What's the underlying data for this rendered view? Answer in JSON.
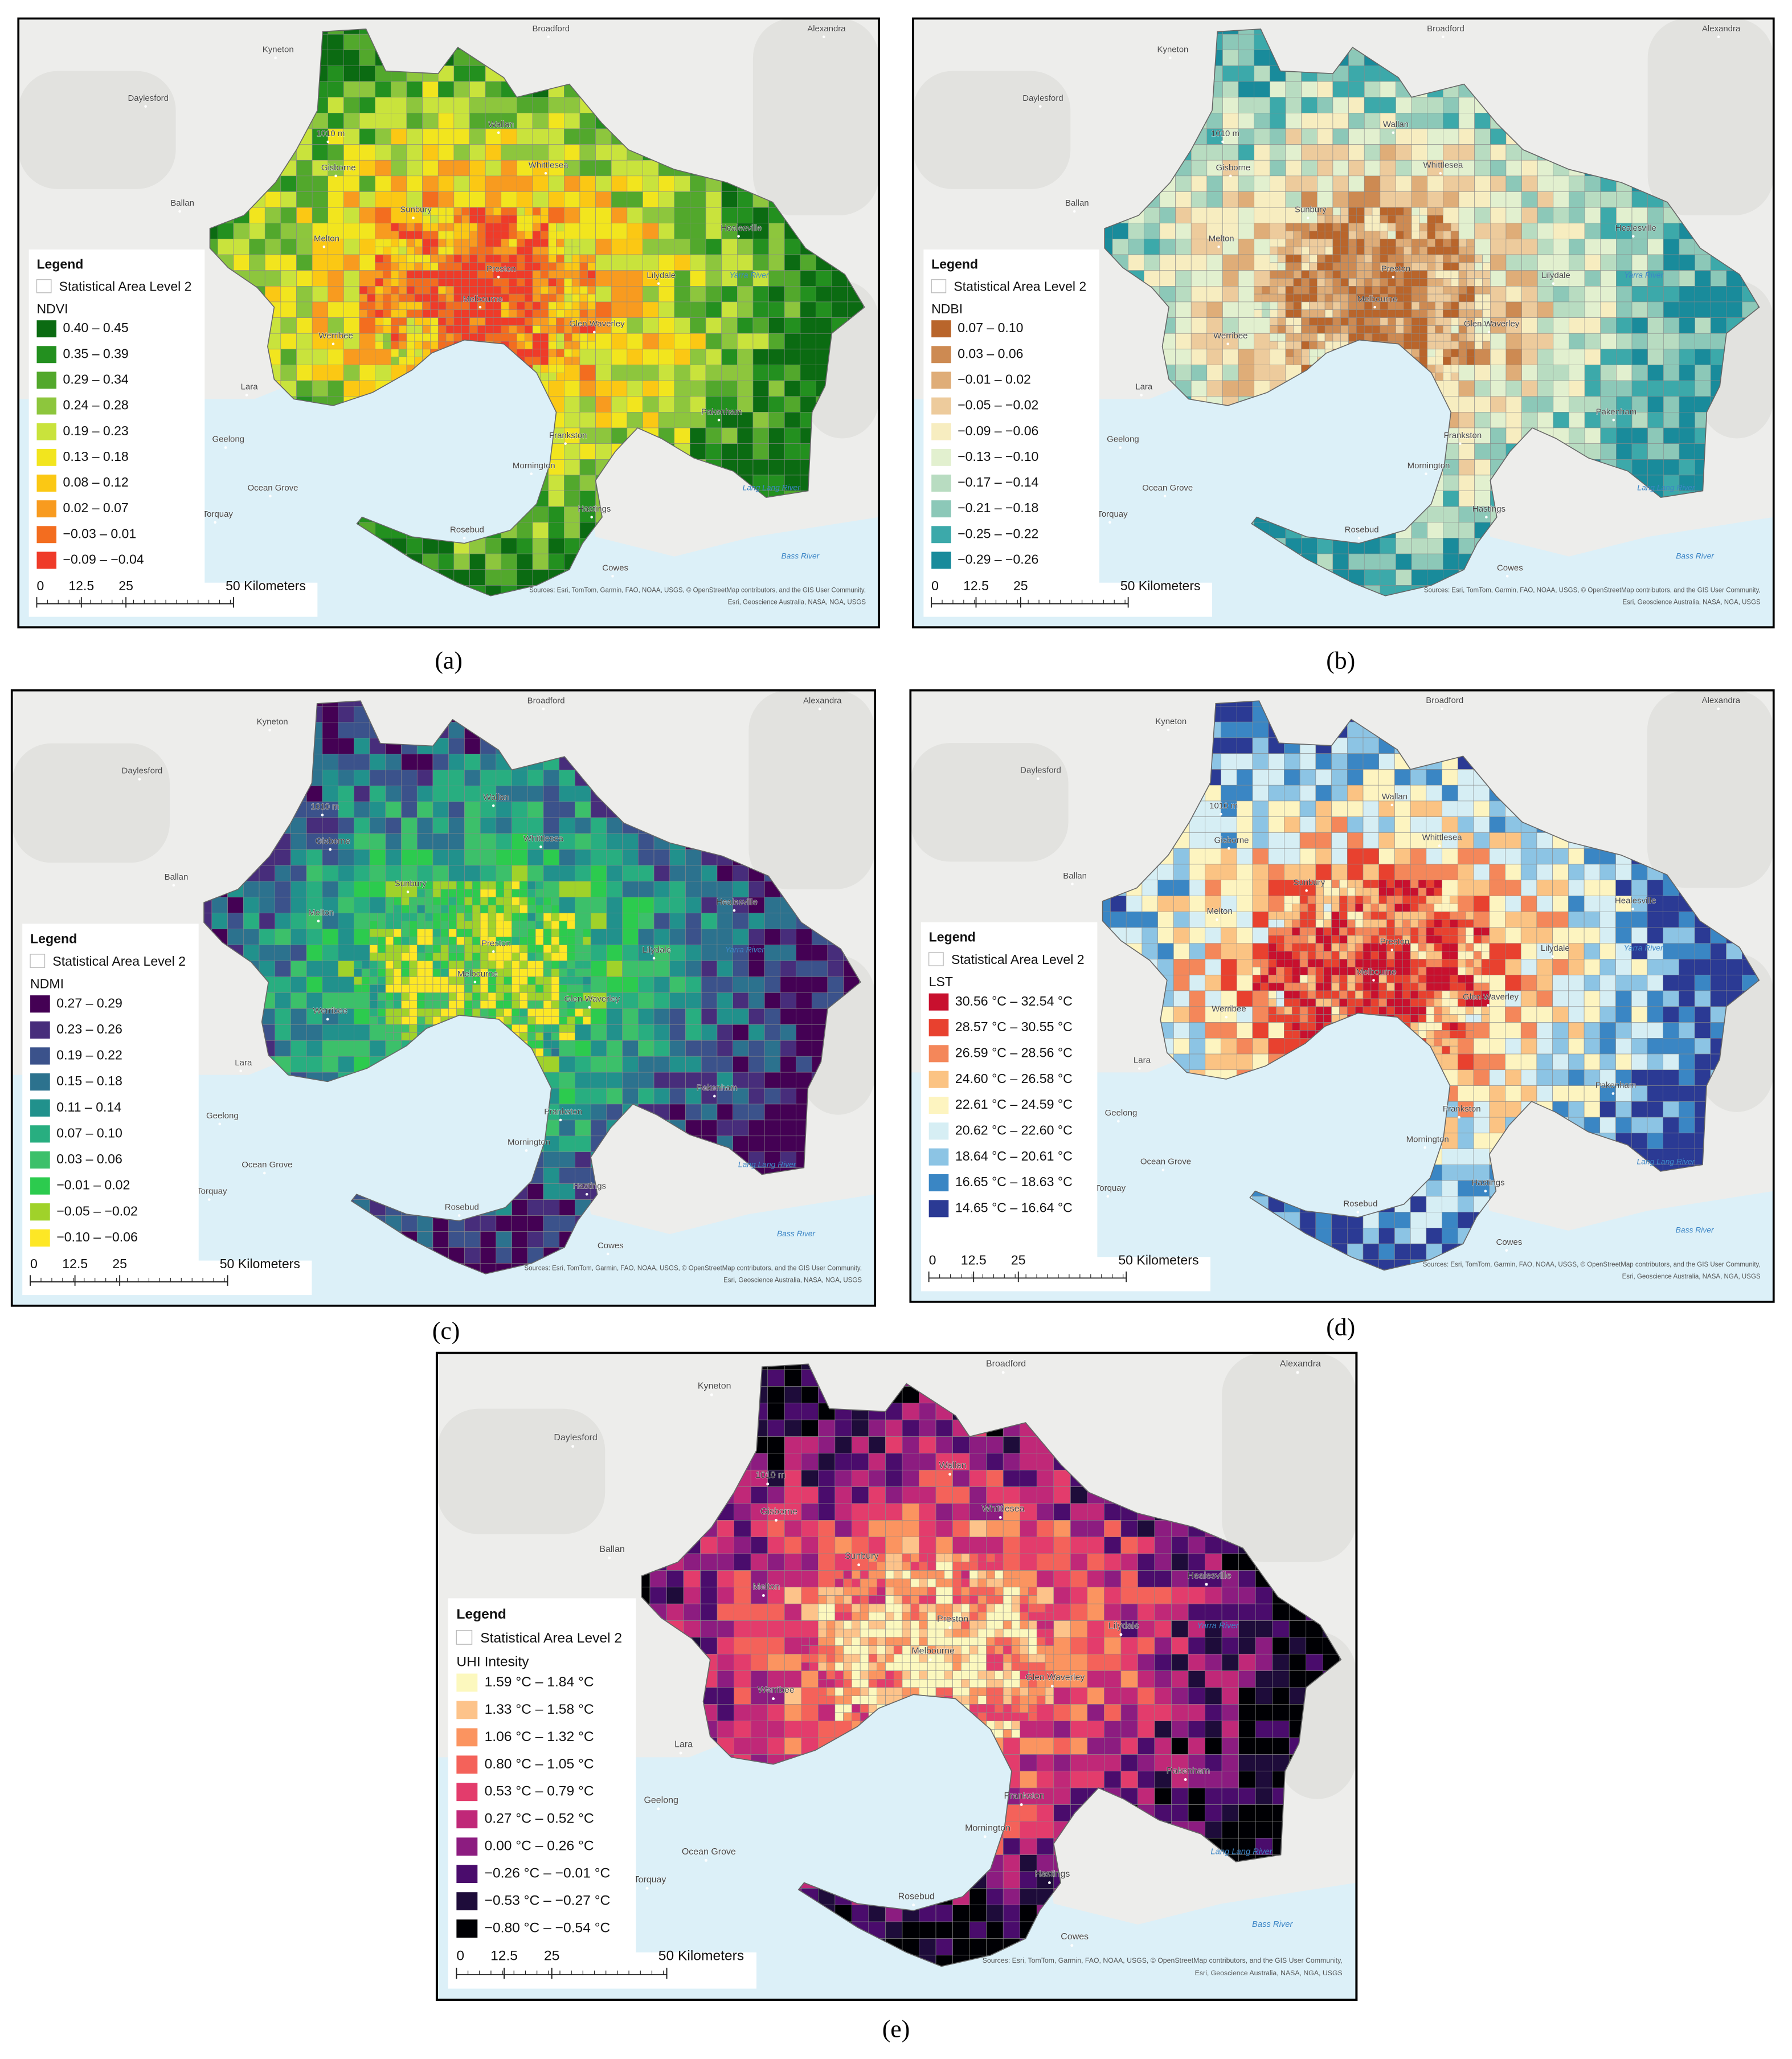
{
  "panels": [
    {
      "label": "(a)",
      "legend_title": "Legend",
      "layer": "Statistical Area Level 2",
      "field": "NDVI",
      "classes": [
        {
          "label": "0.40 – 0.45",
          "color": "#0b6b12"
        },
        {
          "label": "0.35 – 0.39",
          "color": "#23901f"
        },
        {
          "label": "0.29 – 0.34",
          "color": "#52a82c"
        },
        {
          "label": "0.24 – 0.28",
          "color": "#8dc63d"
        },
        {
          "label": "0.19 – 0.23",
          "color": "#c9e33c"
        },
        {
          "label": "0.13 – 0.18",
          "color": "#f2e51e"
        },
        {
          "label": "0.08 – 0.12",
          "color": "#fbc814"
        },
        {
          "label": "0.02 – 0.07",
          "color": "#f89b1f"
        },
        {
          "label": "−0.03 – 0.01",
          "color": "#f36d1f"
        },
        {
          "label": "−0.09 – −0.04",
          "color": "#ef3b29"
        }
      ]
    },
    {
      "label": "(b)",
      "legend_title": "Legend",
      "layer": "Statistical Area Level 2",
      "field": "NDBI",
      "classes": [
        {
          "label": "0.07 – 0.10",
          "color": "#b9652b"
        },
        {
          "label": "0.03 – 0.06",
          "color": "#cd8a52"
        },
        {
          "label": "−0.01 – 0.02",
          "color": "#dfad78"
        },
        {
          "label": "−0.05 – −0.02",
          "color": "#edcb9c"
        },
        {
          "label": "−0.09 – −0.06",
          "color": "#f7edc0"
        },
        {
          "label": "−0.13 – −0.10",
          "color": "#e2f0cf"
        },
        {
          "label": "−0.17 – −0.14",
          "color": "#b8dcc1"
        },
        {
          "label": "−0.21 – −0.18",
          "color": "#8cc8b8"
        },
        {
          "label": "−0.25 – −0.22",
          "color": "#3ca9aa"
        },
        {
          "label": "−0.29 – −0.26",
          "color": "#198b9b"
        }
      ]
    },
    {
      "label": "(c)",
      "legend_title": "Legend",
      "layer": "Statistical Area Level 2",
      "field": "NDMI",
      "classes": [
        {
          "label": "0.27 – 0.29",
          "color": "#440154"
        },
        {
          "label": "0.23 – 0.26",
          "color": "#472d7b"
        },
        {
          "label": "0.19 – 0.22",
          "color": "#3b528b"
        },
        {
          "label": "0.15 – 0.18",
          "color": "#2c728e"
        },
        {
          "label": "0.11 – 0.14",
          "color": "#21918c"
        },
        {
          "label": "0.07 – 0.10",
          "color": "#28ae80"
        },
        {
          "label": "0.03 – 0.06",
          "color": "#3cc06a"
        },
        {
          "label": "−0.01 – 0.02",
          "color": "#2ccb4e"
        },
        {
          "label": "−0.05 – −0.02",
          "color": "#a0d22a"
        },
        {
          "label": "−0.10 – −0.06",
          "color": "#fde725"
        }
      ]
    },
    {
      "label": "(d)",
      "legend_title": "Legend",
      "layer": "Statistical Area Level 2",
      "field": "LST",
      "classes": [
        {
          "label": "30.56 °C – 32.54 °C",
          "color": "#c8102e"
        },
        {
          "label": "28.57 °C – 30.55 °C",
          "color": "#e8412f"
        },
        {
          "label": "26.59 °C – 28.56 °C",
          "color": "#f4875a"
        },
        {
          "label": "24.60 °C – 26.58 °C",
          "color": "#fbc383"
        },
        {
          "label": "22.61 °C – 24.59 °C",
          "color": "#fdf4c0"
        },
        {
          "label": "20.62 °C – 22.60 °C",
          "color": "#d6eef4"
        },
        {
          "label": "18.64 °C – 20.61 °C",
          "color": "#8cc4e4"
        },
        {
          "label": "16.65 °C – 18.63 °C",
          "color": "#3a86c4"
        },
        {
          "label": "14.65 °C – 16.64 °C",
          "color": "#2b3a94"
        }
      ]
    },
    {
      "label": "(e)",
      "legend_title": "Legend",
      "layer": "Statistical Area Level 2",
      "field": "UHI Intesity",
      "classes": [
        {
          "label": "1.59 °C – 1.84 °C",
          "color": "#fcf8be"
        },
        {
          "label": "1.33 °C – 1.58 °C",
          "color": "#fdc38a"
        },
        {
          "label": "1.06 °C – 1.32 °C",
          "color": "#fb9460"
        },
        {
          "label": "0.80 °C – 1.05 °C",
          "color": "#f4625a"
        },
        {
          "label": "0.53 °C – 0.79 °C",
          "color": "#e33c6c"
        },
        {
          "label": "0.27 °C – 0.52 °C",
          "color": "#c02878"
        },
        {
          "label": "0.00 °C – 0.26 °C",
          "color": "#8c1c80"
        },
        {
          "label": "−0.26 °C – −0.01 °C",
          "color": "#4a0c6c"
        },
        {
          "label": "−0.53 °C – −0.27 °C",
          "color": "#1e0c3a"
        },
        {
          "label": "−0.80 °C – −0.54 °C",
          "color": "#000004"
        }
      ]
    }
  ],
  "scale_bar": [
    "0",
    "12.5",
    "25",
    "50 Kilometers"
  ],
  "place_names": [
    "Kyneton",
    "Broadford",
    "Alexandra",
    "Daylesford",
    "Ballan",
    "Wallan",
    "Whittlesea",
    "Gisborne",
    "Sunbury",
    "Melton",
    "Healesville",
    "Lilydale",
    "Preston",
    "Melbourne",
    "Glen Waverley",
    "Werribee",
    "Lara",
    "Geelong",
    "Frankston",
    "Pakenham",
    "Mornington",
    "Hastings",
    "Ocean Grove",
    "Torquay",
    "Rosebud",
    "Cowes",
    "1010 m"
  ],
  "water_names": [
    "Yarra River",
    "Lang Lang River",
    "Bass River"
  ],
  "attribution": [
    "Sources: Esri, TomTom, Garmin, FAO, NOAA, USGS, © OpenStreetMap contributors, and the GIS User Community,",
    "Esri, Geoscience Australia, NASA, NGA, USGS"
  ]
}
